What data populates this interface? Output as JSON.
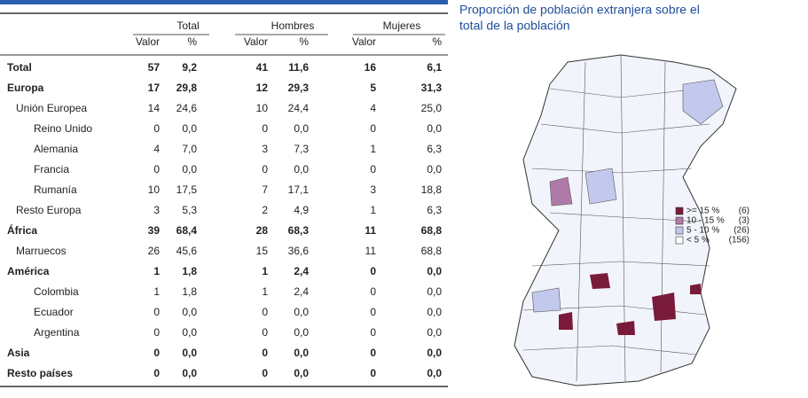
{
  "table": {
    "groups": [
      "Total",
      "Hombres",
      "Mujeres"
    ],
    "subheaders": [
      "Valor",
      "%",
      "Valor",
      "%",
      "Valor",
      "%"
    ],
    "rows": [
      [
        "Total",
        "57",
        "9,2",
        "41",
        "11,6",
        "16",
        "6,1"
      ],
      [
        "Europa",
        "17",
        "29,8",
        "12",
        "29,3",
        "5",
        "31,3"
      ],
      [
        "Unión Europea",
        "14",
        "24,6",
        "10",
        "24,4",
        "4",
        "25,0"
      ],
      [
        "Reino Unido",
        "0",
        "0,0",
        "0",
        "0,0",
        "0",
        "0,0"
      ],
      [
        "Alemania",
        "4",
        "7,0",
        "3",
        "7,3",
        "1",
        "6,3"
      ],
      [
        "Francia",
        "0",
        "0,0",
        "0",
        "0,0",
        "0",
        "0,0"
      ],
      [
        "Rumanía",
        "10",
        "17,5",
        "7",
        "17,1",
        "3",
        "18,8"
      ],
      [
        "Resto Europa",
        "3",
        "5,3",
        "2",
        "4,9",
        "1",
        "6,3"
      ],
      [
        "África",
        "39",
        "68,4",
        "28",
        "68,3",
        "11",
        "68,8"
      ],
      [
        "Marruecos",
        "26",
        "45,6",
        "15",
        "36,6",
        "11",
        "68,8"
      ],
      [
        "América",
        "1",
        "1,8",
        "1",
        "2,4",
        "0",
        "0,0"
      ],
      [
        "Colombia",
        "1",
        "1,8",
        "1",
        "2,4",
        "0",
        "0,0"
      ],
      [
        "Ecuador",
        "0",
        "0,0",
        "0",
        "0,0",
        "0",
        "0,0"
      ],
      [
        "Argentina",
        "0",
        "0,0",
        "0",
        "0,0",
        "0",
        "0,0"
      ],
      [
        "Asia",
        "0",
        "0,0",
        "0",
        "0,0",
        "0",
        "0,0"
      ],
      [
        "Resto países",
        "0",
        "0,0",
        "0",
        "0,0",
        "0",
        "0,0"
      ]
    ]
  },
  "map": {
    "title_lines": [
      "Proporción de población extranjera sobre el",
      "total de la población"
    ],
    "legend": [
      {
        "label": ">= 15 %",
        "count": "(6)",
        "color": "#7a1a3a"
      },
      {
        "label": "10 - 15 %",
        "count": "(3)",
        "color": "#b07aa8"
      },
      {
        "label": "5 - 10 %",
        "count": "(26)",
        "color": "#c3c9ec"
      },
      {
        "label": "< 5 %",
        "count": "(156)",
        "color": "#ffffff"
      }
    ]
  }
}
